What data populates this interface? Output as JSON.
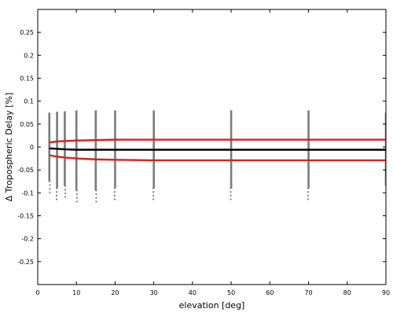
{
  "chart_data": {
    "type": "scatter",
    "xlabel": "elevation [deg]",
    "ylabel": "Δ Tropospheric Delay [%]",
    "xlim": [
      0,
      90
    ],
    "ylim": [
      -0.3,
      0.3
    ],
    "x_ticks": [
      0,
      10,
      20,
      30,
      40,
      50,
      60,
      70,
      80,
      90
    ],
    "y_ticks": [
      -0.25,
      -0.2,
      -0.15,
      -0.1,
      -0.05,
      0,
      0.05,
      0.1,
      0.15,
      0.2,
      0.25
    ],
    "x_tick_labels": [
      "0",
      "10",
      "20",
      "30",
      "40",
      "50",
      "60",
      "70",
      "80",
      "90"
    ],
    "y_tick_labels": [
      "-0.25",
      "-0.2",
      "-0.15",
      "-0.1",
      "-0.05",
      "0",
      "0.05",
      "0.1",
      "0.15",
      "0.2",
      "0.25"
    ],
    "grid": false,
    "scatter_columns": [
      {
        "x": 3,
        "ymin": -0.105,
        "ymax": 0.075
      },
      {
        "x": 5,
        "ymin": -0.12,
        "ymax": 0.077
      },
      {
        "x": 7,
        "ymin": -0.115,
        "ymax": 0.078
      },
      {
        "x": 10,
        "ymin": -0.125,
        "ymax": 0.08
      },
      {
        "x": 15,
        "ymin": -0.125,
        "ymax": 0.08
      },
      {
        "x": 20,
        "ymin": -0.12,
        "ymax": 0.08
      },
      {
        "x": 30,
        "ymin": -0.12,
        "ymax": 0.08
      },
      {
        "x": 50,
        "ymin": -0.12,
        "ymax": 0.08
      },
      {
        "x": 70,
        "ymin": -0.12,
        "ymax": 0.08
      },
      {
        "x": 90,
        "ymin": -0.115,
        "ymax": 0.075
      }
    ],
    "series": [
      {
        "role": "mean",
        "color": "#000000",
        "x": [
          3,
          5,
          7,
          10,
          15,
          20,
          30,
          50,
          70,
          90
        ],
        "y": [
          -0.003,
          -0.004,
          -0.005,
          -0.006,
          -0.006,
          -0.006,
          -0.006,
          -0.006,
          -0.006,
          -0.006
        ]
      },
      {
        "role": "upper-bound",
        "color": "#d62020",
        "x": [
          3,
          5,
          7,
          10,
          15,
          20,
          30,
          50,
          70,
          90
        ],
        "y": [
          0.01,
          0.012,
          0.013,
          0.014,
          0.015,
          0.016,
          0.016,
          0.016,
          0.016,
          0.016
        ]
      },
      {
        "role": "lower-bound",
        "color": "#d62020",
        "x": [
          3,
          5,
          7,
          10,
          15,
          20,
          30,
          50,
          70,
          90
        ],
        "y": [
          -0.018,
          -0.021,
          -0.023,
          -0.025,
          -0.027,
          -0.028,
          -0.029,
          -0.029,
          -0.029,
          -0.029
        ]
      }
    ],
    "colors": {
      "points": "#7a7a7a",
      "axis": "#000000"
    }
  }
}
